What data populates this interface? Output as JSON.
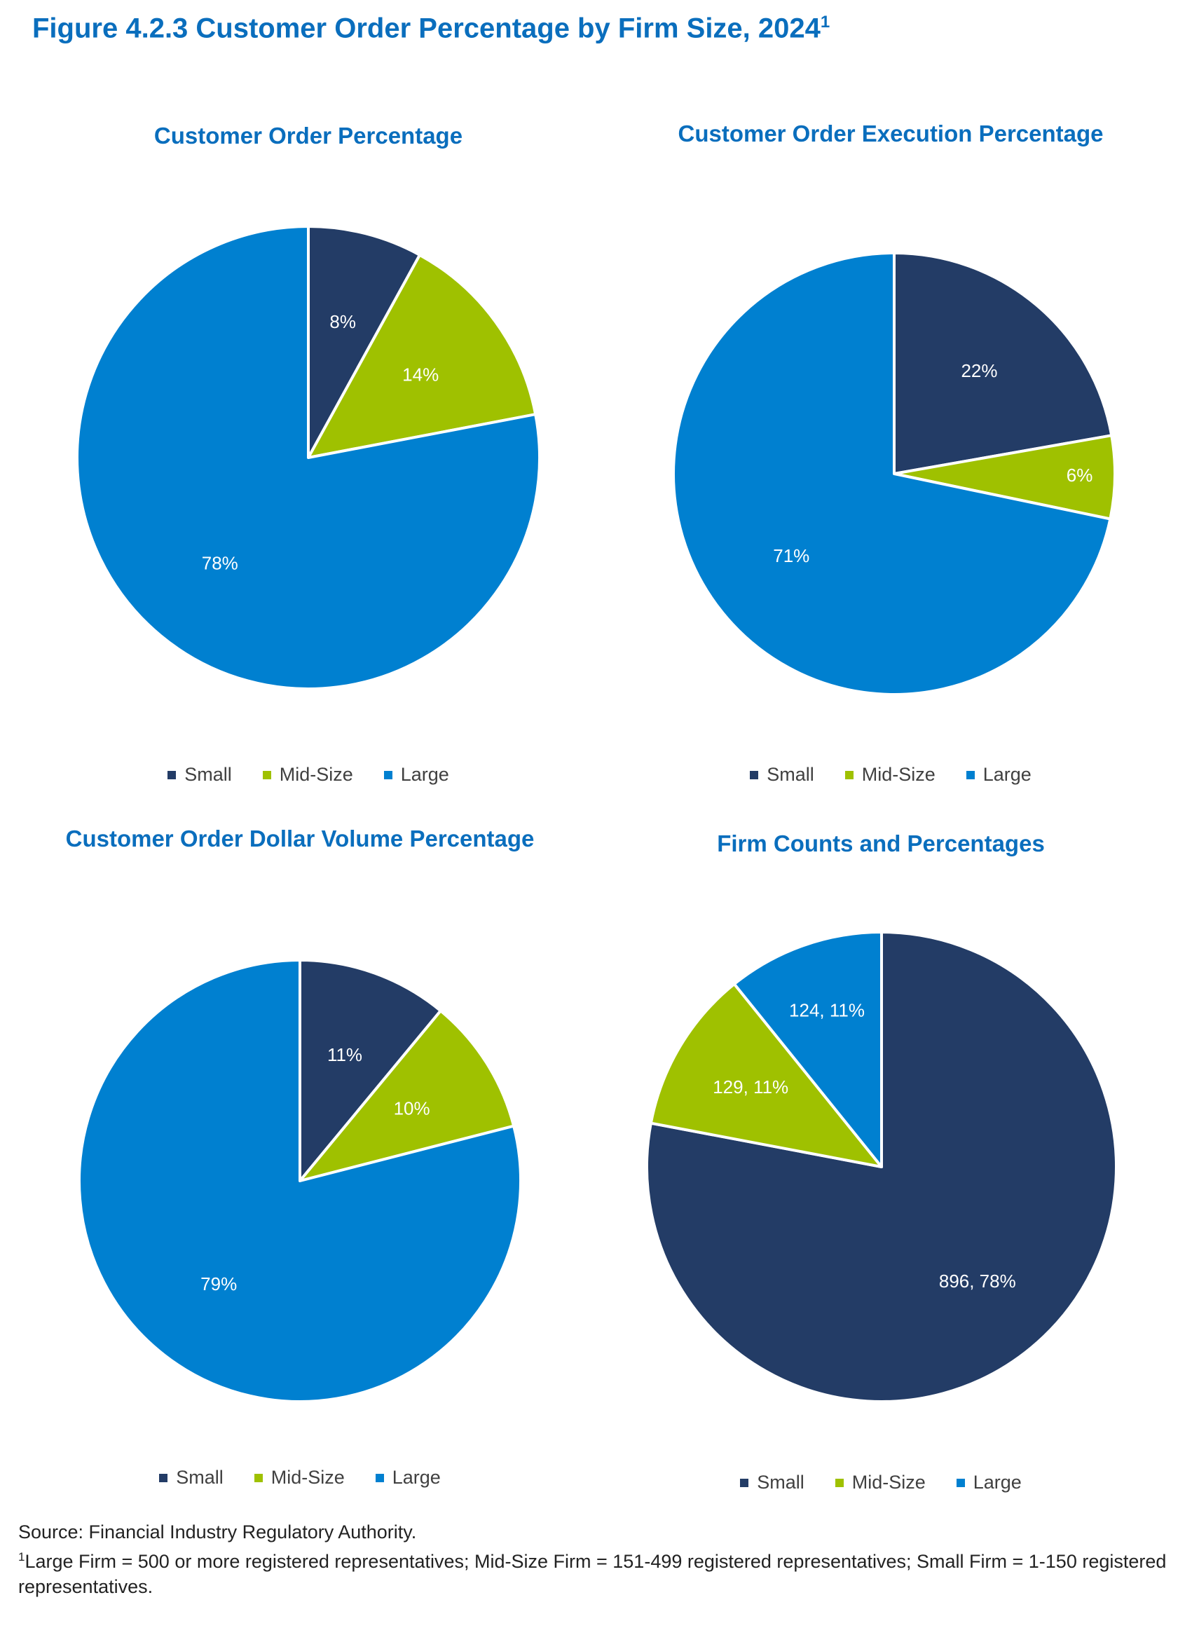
{
  "figure": {
    "title": "Figure 4.2.3 Customer Order Percentage by Firm Size, 2024",
    "title_superscript": "1"
  },
  "colors": {
    "small": "#233C66",
    "mid_size": "#9FC100",
    "large": "#0080D0",
    "title": "#0A6EBD"
  },
  "chart_data": [
    {
      "type": "pie",
      "title": "Customer Order Percentage",
      "categories": [
        "Small",
        "Mid-Size",
        "Large"
      ],
      "values": [
        8,
        14,
        78
      ],
      "labels": [
        "8%",
        "14%",
        "78%"
      ],
      "legend": [
        "Small",
        "Mid-Size",
        "Large"
      ]
    },
    {
      "type": "pie",
      "title": "Customer Order Execution Percentage",
      "categories": [
        "Small",
        "Mid-Size",
        "Large"
      ],
      "values": [
        22,
        6,
        71
      ],
      "labels": [
        "22%",
        "6%",
        "71%"
      ],
      "legend": [
        "Small",
        "Mid-Size",
        "Large"
      ]
    },
    {
      "type": "pie",
      "title": "Customer Order Dollar Volume Percentage",
      "categories": [
        "Small",
        "Mid-Size",
        "Large"
      ],
      "values": [
        11,
        10,
        79
      ],
      "labels": [
        "11%",
        "10%",
        "79%"
      ],
      "legend": [
        "Small",
        "Mid-Size",
        "Large"
      ]
    },
    {
      "type": "pie",
      "title": "Firm Counts and Percentages",
      "categories": [
        "Small",
        "Mid-Size",
        "Large"
      ],
      "values": [
        896,
        129,
        124
      ],
      "labels": [
        "896, 78%",
        "129, 11%",
        "124, 11%"
      ],
      "legend": [
        "Small",
        "Mid-Size",
        "Large"
      ]
    }
  ],
  "footnotes": {
    "source": "Source: Financial Industry Regulatory Authority.",
    "note_marker": "1",
    "note": "Large Firm = 500 or more registered representatives; Mid-Size Firm = 151-499 registered representatives; Small Firm = 1-150 registered representatives."
  }
}
